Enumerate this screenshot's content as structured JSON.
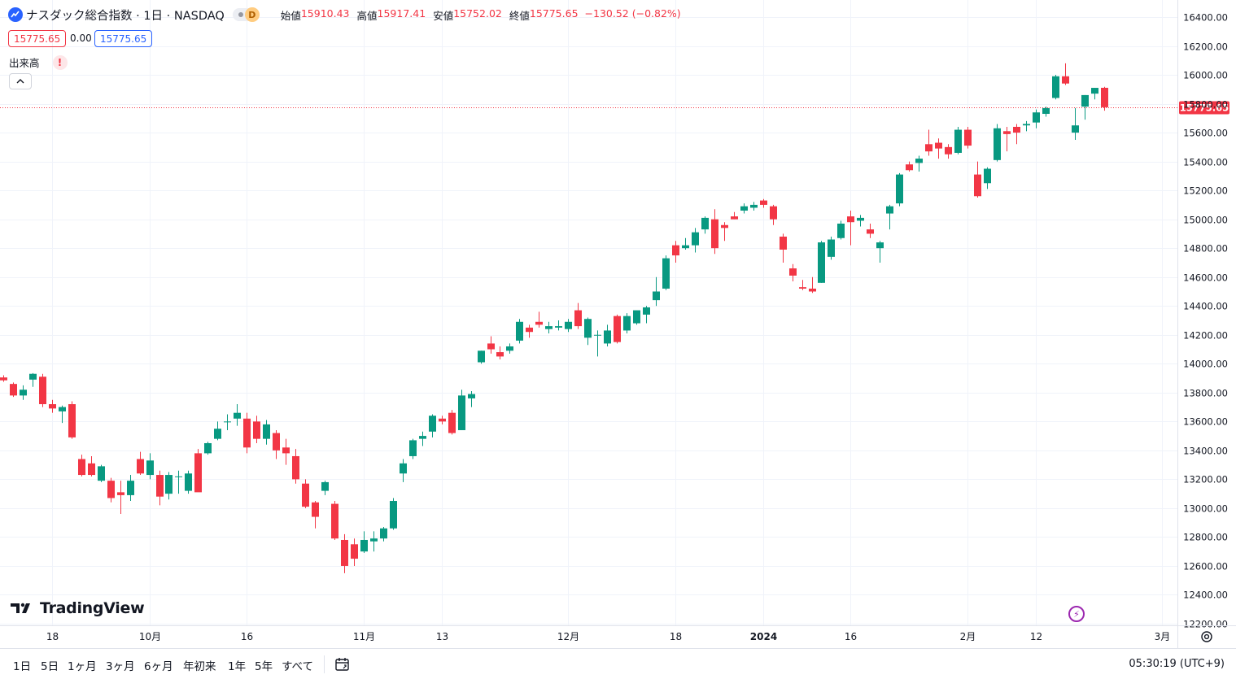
{
  "header": {
    "title": "ナスダック総合指数 · 1日 · NASDAQ",
    "interval_badge": "D",
    "ohlc": [
      {
        "label": "始値",
        "value": "15910.43"
      },
      {
        "label": "高値",
        "value": "15917.41"
      },
      {
        "label": "安値",
        "value": "15752.02"
      },
      {
        "label": "終値",
        "value": "15775.65"
      }
    ],
    "change": "−130.52 (−0.82%)"
  },
  "price_boxes": {
    "sell": "15775.65",
    "spread": "0.00",
    "buy": "15775.65"
  },
  "volume": {
    "label": "出来高",
    "warning": "!"
  },
  "logo": {
    "text": "TradingView"
  },
  "bottom_bar": {
    "ranges": [
      "1日",
      "5日",
      "1ヶ月",
      "3ヶ月",
      "6ヶ月",
      "年初来",
      "1年",
      "5年",
      "すべて"
    ],
    "clock": "05:30:19 (UTC+9)"
  },
  "colors": {
    "up": "#089981",
    "down": "#f23645",
    "grid": "#f0f3fa",
    "axis_text": "#131722",
    "last_price": "#f23645"
  },
  "chart_data": {
    "type": "candlestick",
    "last_price": 15775.65,
    "ylim": [
      12200,
      16400
    ],
    "y_ticks": [
      16400,
      16200,
      16000,
      15800,
      15600,
      15400,
      15200,
      15000,
      14800,
      14600,
      14400,
      14200,
      14000,
      13800,
      13600,
      13400,
      13200,
      13000,
      12800,
      12600,
      12400,
      12200
    ],
    "y_tick_labels": [
      "16400.00",
      "16200.00",
      "16000.00",
      "15800.00",
      "15600.00",
      "15400.00",
      "15200.00",
      "15000.00",
      "14800.00",
      "14600.00",
      "14400.00",
      "14200.00",
      "14000.00",
      "13800.00",
      "13600.00",
      "13400.00",
      "13200.00",
      "13000.00",
      "12800.00",
      "12600.00",
      "12400.00",
      "12200.00"
    ],
    "x_labels": [
      {
        "text": "18",
        "index": 5,
        "bold": false
      },
      {
        "text": "10月",
        "index": 15,
        "bold": false
      },
      {
        "text": "16",
        "index": 25,
        "bold": false
      },
      {
        "text": "11月",
        "index": 37,
        "bold": false
      },
      {
        "text": "13",
        "index": 45,
        "bold": false
      },
      {
        "text": "12月",
        "index": 58,
        "bold": false
      },
      {
        "text": "18",
        "index": 69,
        "bold": false
      },
      {
        "text": "2024",
        "index": 78,
        "bold": true
      },
      {
        "text": "16",
        "index": 87,
        "bold": false
      },
      {
        "text": "2月",
        "index": 99,
        "bold": false
      },
      {
        "text": "12",
        "index": 106,
        "bold": false
      },
      {
        "text": "3月",
        "index": 119,
        "bold": false
      }
    ],
    "candles": [
      {
        "o": 13905,
        "h": 13920,
        "l": 13875,
        "c": 13885
      },
      {
        "o": 13860,
        "h": 13870,
        "l": 13770,
        "c": 13780
      },
      {
        "o": 13780,
        "h": 13850,
        "l": 13750,
        "c": 13820
      },
      {
        "o": 13890,
        "h": 13935,
        "l": 13840,
        "c": 13930
      },
      {
        "o": 13910,
        "h": 13930,
        "l": 13700,
        "c": 13720
      },
      {
        "o": 13720,
        "h": 13750,
        "l": 13660,
        "c": 13690
      },
      {
        "o": 13670,
        "h": 13710,
        "l": 13590,
        "c": 13700
      },
      {
        "o": 13720,
        "h": 13740,
        "l": 13480,
        "c": 13490
      },
      {
        "o": 13340,
        "h": 13370,
        "l": 13220,
        "c": 13230
      },
      {
        "o": 13310,
        "h": 13360,
        "l": 13220,
        "c": 13230
      },
      {
        "o": 13190,
        "h": 13300,
        "l": 13180,
        "c": 13290
      },
      {
        "o": 13190,
        "h": 13210,
        "l": 13040,
        "c": 13070
      },
      {
        "o": 13110,
        "h": 13190,
        "l": 12960,
        "c": 13090
      },
      {
        "o": 13090,
        "h": 13230,
        "l": 13050,
        "c": 13190
      },
      {
        "o": 13340,
        "h": 13390,
        "l": 13230,
        "c": 13240
      },
      {
        "o": 13230,
        "h": 13380,
        "l": 13200,
        "c": 13330
      },
      {
        "o": 13230,
        "h": 13260,
        "l": 13020,
        "c": 13080
      },
      {
        "o": 13100,
        "h": 13250,
        "l": 13060,
        "c": 13230
      },
      {
        "o": 13220,
        "h": 13260,
        "l": 13100,
        "c": 13220
      },
      {
        "o": 13120,
        "h": 13260,
        "l": 13100,
        "c": 13240
      },
      {
        "o": 13380,
        "h": 13410,
        "l": 13120,
        "c": 13110
      },
      {
        "o": 13380,
        "h": 13460,
        "l": 13370,
        "c": 13450
      },
      {
        "o": 13480,
        "h": 13600,
        "l": 13470,
        "c": 13550
      },
      {
        "o": 13600,
        "h": 13650,
        "l": 13540,
        "c": 13600
      },
      {
        "o": 13620,
        "h": 13720,
        "l": 13570,
        "c": 13660
      },
      {
        "o": 13620,
        "h": 13660,
        "l": 13380,
        "c": 13420
      },
      {
        "o": 13600,
        "h": 13640,
        "l": 13450,
        "c": 13480
      },
      {
        "o": 13480,
        "h": 13610,
        "l": 13440,
        "c": 13580
      },
      {
        "o": 13520,
        "h": 13540,
        "l": 13340,
        "c": 13400
      },
      {
        "o": 13420,
        "h": 13480,
        "l": 13300,
        "c": 13380
      },
      {
        "o": 13360,
        "h": 13410,
        "l": 13170,
        "c": 13200
      },
      {
        "o": 13170,
        "h": 13200,
        "l": 13000,
        "c": 13010
      },
      {
        "o": 13040,
        "h": 13050,
        "l": 12860,
        "c": 12940
      },
      {
        "o": 13120,
        "h": 13190,
        "l": 13090,
        "c": 13180
      },
      {
        "o": 13030,
        "h": 13050,
        "l": 12780,
        "c": 12790
      },
      {
        "o": 12780,
        "h": 12820,
        "l": 12550,
        "c": 12600
      },
      {
        "o": 12750,
        "h": 12790,
        "l": 12600,
        "c": 12650
      },
      {
        "o": 12700,
        "h": 12840,
        "l": 12690,
        "c": 12780
      },
      {
        "o": 12770,
        "h": 12840,
        "l": 12700,
        "c": 12790
      },
      {
        "o": 12790,
        "h": 12870,
        "l": 12770,
        "c": 12860
      },
      {
        "o": 12860,
        "h": 13070,
        "l": 12850,
        "c": 13050
      },
      {
        "o": 13240,
        "h": 13340,
        "l": 13180,
        "c": 13310
      },
      {
        "o": 13360,
        "h": 13480,
        "l": 13340,
        "c": 13470
      },
      {
        "o": 13480,
        "h": 13530,
        "l": 13430,
        "c": 13500
      },
      {
        "o": 13530,
        "h": 13650,
        "l": 13490,
        "c": 13640
      },
      {
        "o": 13620,
        "h": 13640,
        "l": 13580,
        "c": 13600
      },
      {
        "o": 13660,
        "h": 13680,
        "l": 13510,
        "c": 13520
      },
      {
        "o": 13540,
        "h": 13820,
        "l": 13540,
        "c": 13780
      },
      {
        "o": 13760,
        "h": 13810,
        "l": 13700,
        "c": 13790
      },
      {
        "o": 14010,
        "h": 14090,
        "l": 14000,
        "c": 14090
      },
      {
        "o": 14140,
        "h": 14190,
        "l": 14070,
        "c": 14100
      },
      {
        "o": 14080,
        "h": 14120,
        "l": 14030,
        "c": 14050
      },
      {
        "o": 14090,
        "h": 14140,
        "l": 14070,
        "c": 14120
      },
      {
        "o": 14160,
        "h": 14310,
        "l": 14140,
        "c": 14290
      },
      {
        "o": 14250,
        "h": 14270,
        "l": 14180,
        "c": 14220
      },
      {
        "o": 14290,
        "h": 14360,
        "l": 14250,
        "c": 14270
      },
      {
        "o": 14240,
        "h": 14290,
        "l": 14210,
        "c": 14260
      },
      {
        "o": 14250,
        "h": 14300,
        "l": 14230,
        "c": 14260
      },
      {
        "o": 14240,
        "h": 14310,
        "l": 14220,
        "c": 14290
      },
      {
        "o": 14370,
        "h": 14420,
        "l": 14240,
        "c": 14260
      },
      {
        "o": 14180,
        "h": 14320,
        "l": 14130,
        "c": 14310
      },
      {
        "o": 14200,
        "h": 14230,
        "l": 14050,
        "c": 14200
      },
      {
        "o": 14140,
        "h": 14270,
        "l": 14120,
        "c": 14230
      },
      {
        "o": 14330,
        "h": 14340,
        "l": 14140,
        "c": 14150
      },
      {
        "o": 14230,
        "h": 14350,
        "l": 14210,
        "c": 14330
      },
      {
        "o": 14280,
        "h": 14360,
        "l": 14270,
        "c": 14370
      },
      {
        "o": 14340,
        "h": 14400,
        "l": 14280,
        "c": 14390
      },
      {
        "o": 14440,
        "h": 14600,
        "l": 14400,
        "c": 14500
      },
      {
        "o": 14520,
        "h": 14750,
        "l": 14510,
        "c": 14730
      },
      {
        "o": 14820,
        "h": 14850,
        "l": 14700,
        "c": 14750
      },
      {
        "o": 14800,
        "h": 14870,
        "l": 14790,
        "c": 14820
      },
      {
        "o": 14820,
        "h": 14940,
        "l": 14770,
        "c": 14910
      },
      {
        "o": 14930,
        "h": 15020,
        "l": 14900,
        "c": 15010
      },
      {
        "o": 15000,
        "h": 15070,
        "l": 14760,
        "c": 14800
      },
      {
        "o": 14960,
        "h": 14980,
        "l": 14850,
        "c": 14940
      },
      {
        "o": 15020,
        "h": 15050,
        "l": 15000,
        "c": 15000
      },
      {
        "o": 15060,
        "h": 15110,
        "l": 15040,
        "c": 15090
      },
      {
        "o": 15080,
        "h": 15120,
        "l": 15060,
        "c": 15100
      },
      {
        "o": 15130,
        "h": 15140,
        "l": 15080,
        "c": 15100
      },
      {
        "o": 15090,
        "h": 15100,
        "l": 14960,
        "c": 15000
      },
      {
        "o": 14880,
        "h": 14900,
        "l": 14700,
        "c": 14790
      },
      {
        "o": 14660,
        "h": 14690,
        "l": 14570,
        "c": 14610
      },
      {
        "o": 14530,
        "h": 14580,
        "l": 14510,
        "c": 14520
      },
      {
        "o": 14520,
        "h": 14600,
        "l": 14490,
        "c": 14500
      },
      {
        "o": 14560,
        "h": 14850,
        "l": 14560,
        "c": 14840
      },
      {
        "o": 14740,
        "h": 14880,
        "l": 14720,
        "c": 14860
      },
      {
        "o": 14870,
        "h": 14990,
        "l": 14860,
        "c": 14970
      },
      {
        "o": 15020,
        "h": 15060,
        "l": 14820,
        "c": 14980
      },
      {
        "o": 14990,
        "h": 15030,
        "l": 14950,
        "c": 15010
      },
      {
        "o": 14930,
        "h": 14970,
        "l": 14870,
        "c": 14900
      },
      {
        "o": 14800,
        "h": 14850,
        "l": 14700,
        "c": 14840
      },
      {
        "o": 15040,
        "h": 15100,
        "l": 14930,
        "c": 15090
      },
      {
        "o": 15110,
        "h": 15320,
        "l": 15090,
        "c": 15310
      },
      {
        "o": 15380,
        "h": 15400,
        "l": 15330,
        "c": 15340
      },
      {
        "o": 15390,
        "h": 15440,
        "l": 15330,
        "c": 15420
      },
      {
        "o": 15520,
        "h": 15620,
        "l": 15440,
        "c": 15470
      },
      {
        "o": 15530,
        "h": 15560,
        "l": 15420,
        "c": 15490
      },
      {
        "o": 15500,
        "h": 15520,
        "l": 15420,
        "c": 15450
      },
      {
        "o": 15460,
        "h": 15640,
        "l": 15450,
        "c": 15620
      },
      {
        "o": 15620,
        "h": 15640,
        "l": 15490,
        "c": 15510
      },
      {
        "o": 15310,
        "h": 15400,
        "l": 15150,
        "c": 15160
      },
      {
        "o": 15250,
        "h": 15360,
        "l": 15210,
        "c": 15350
      },
      {
        "o": 15410,
        "h": 15660,
        "l": 15400,
        "c": 15630
      },
      {
        "o": 15610,
        "h": 15640,
        "l": 15470,
        "c": 15590
      },
      {
        "o": 15640,
        "h": 15660,
        "l": 15520,
        "c": 15600
      },
      {
        "o": 15650,
        "h": 15680,
        "l": 15610,
        "c": 15660
      },
      {
        "o": 15670,
        "h": 15760,
        "l": 15630,
        "c": 15740
      },
      {
        "o": 15730,
        "h": 15780,
        "l": 15710,
        "c": 15770
      },
      {
        "o": 15840,
        "h": 16000,
        "l": 15830,
        "c": 15990
      },
      {
        "o": 15990,
        "h": 16080,
        "l": 15930,
        "c": 15940
      },
      {
        "o": 15600,
        "h": 15770,
        "l": 15550,
        "c": 15650
      },
      {
        "o": 15780,
        "h": 15860,
        "l": 15690,
        "c": 15860
      },
      {
        "o": 15870,
        "h": 15910,
        "l": 15830,
        "c": 15910
      },
      {
        "o": 15910.43,
        "h": 15917.41,
        "l": 15752.02,
        "c": 15775.65
      }
    ]
  }
}
